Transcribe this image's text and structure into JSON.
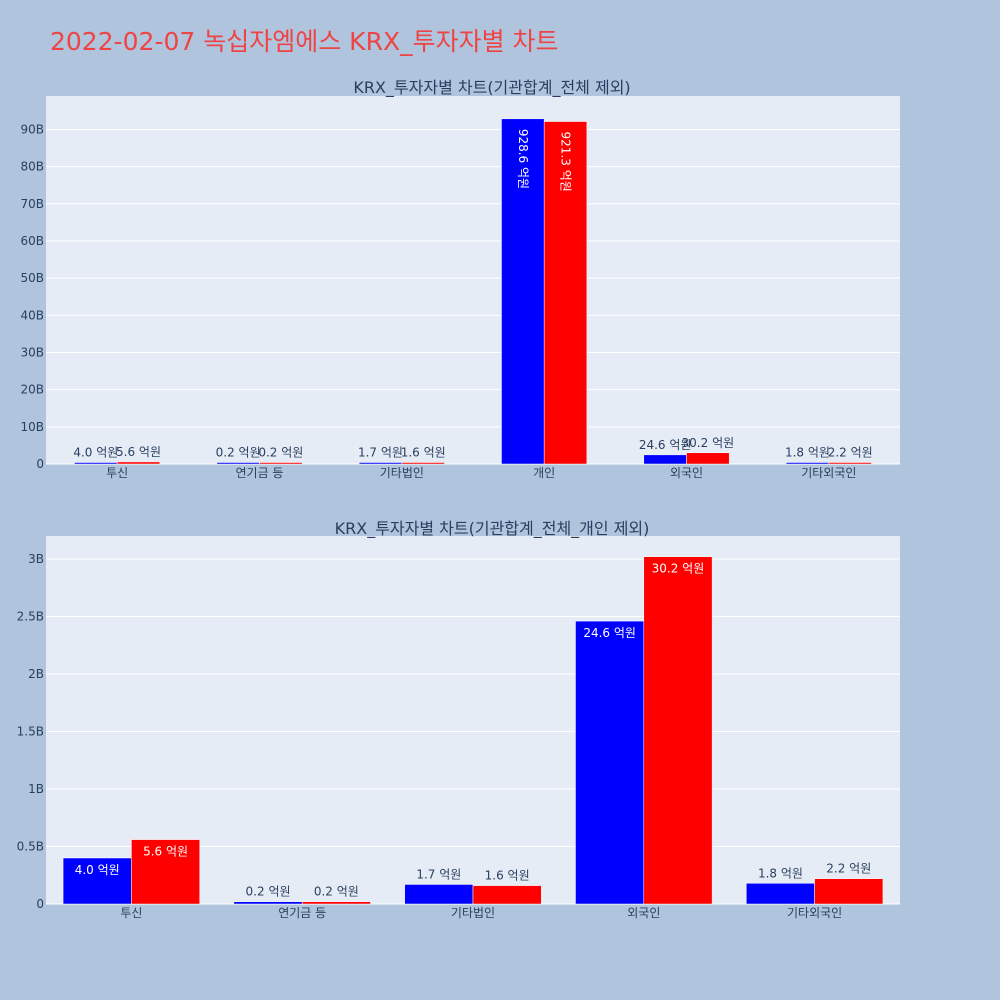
{
  "page": {
    "title": "2022-02-07 녹십자엠에스 KRX_투자자별 차트"
  },
  "colors": {
    "background": "#b0c4de",
    "plot_bg": "#e5ecf6",
    "series_a": "#0000ff",
    "series_b": "#ff0000",
    "title": "#ef4444"
  },
  "chart_data": [
    {
      "type": "bar",
      "title": "KRX_투자자별 차트(기관합계_전체 제외)",
      "categories": [
        "투신",
        "연기금 등",
        "기타법인",
        "개인",
        "외국인",
        "기타외국인"
      ],
      "series": [
        {
          "color": "#0000ff",
          "values": [
            0.4,
            0.02,
            0.17,
            92.86,
            2.46,
            0.18
          ],
          "labels": [
            "4.0 억원",
            "0.2 억원",
            "1.7 억원",
            "928.6 억원",
            "24.6 억원",
            "1.8 억원"
          ]
        },
        {
          "color": "#ff0000",
          "values": [
            0.56,
            0.02,
            0.16,
            92.13,
            3.02,
            0.22
          ],
          "labels": [
            "5.6 억원",
            "0.2 억원",
            "1.6 억원",
            "921.3 억원",
            "30.2 억원",
            "2.2 억원"
          ]
        }
      ],
      "value_unit": "B",
      "ylim": [
        0,
        99
      ],
      "yticks": [
        0,
        10,
        20,
        30,
        40,
        50,
        60,
        70,
        80,
        90
      ],
      "ytick_labels": [
        "0",
        "10B",
        "20B",
        "30B",
        "40B",
        "50B",
        "60B",
        "70B",
        "80B",
        "90B"
      ],
      "grid": true,
      "legend": "none"
    },
    {
      "type": "bar",
      "title": "KRX_투자자별 차트(기관합계_전체_개인 제외)",
      "categories": [
        "투신",
        "연기금 등",
        "기타법인",
        "외국인",
        "기타외국인"
      ],
      "series": [
        {
          "color": "#0000ff",
          "values": [
            0.4,
            0.02,
            0.17,
            2.46,
            0.18
          ],
          "labels": [
            "4.0 억원",
            "0.2 억원",
            "1.7 억원",
            "24.6 억원",
            "1.8 억원"
          ]
        },
        {
          "color": "#ff0000",
          "values": [
            0.56,
            0.02,
            0.16,
            3.02,
            0.22
          ],
          "labels": [
            "5.6 억원",
            "0.2 억원",
            "1.6 억원",
            "30.2 억원",
            "2.2 억원"
          ]
        }
      ],
      "value_unit": "B",
      "ylim": [
        0,
        3.2
      ],
      "yticks": [
        0,
        0.5,
        1,
        1.5,
        2,
        2.5,
        3
      ],
      "ytick_labels": [
        "0",
        "0.5B",
        "1B",
        "1.5B",
        "2B",
        "2.5B",
        "3B"
      ],
      "grid": true,
      "legend": "none"
    }
  ]
}
